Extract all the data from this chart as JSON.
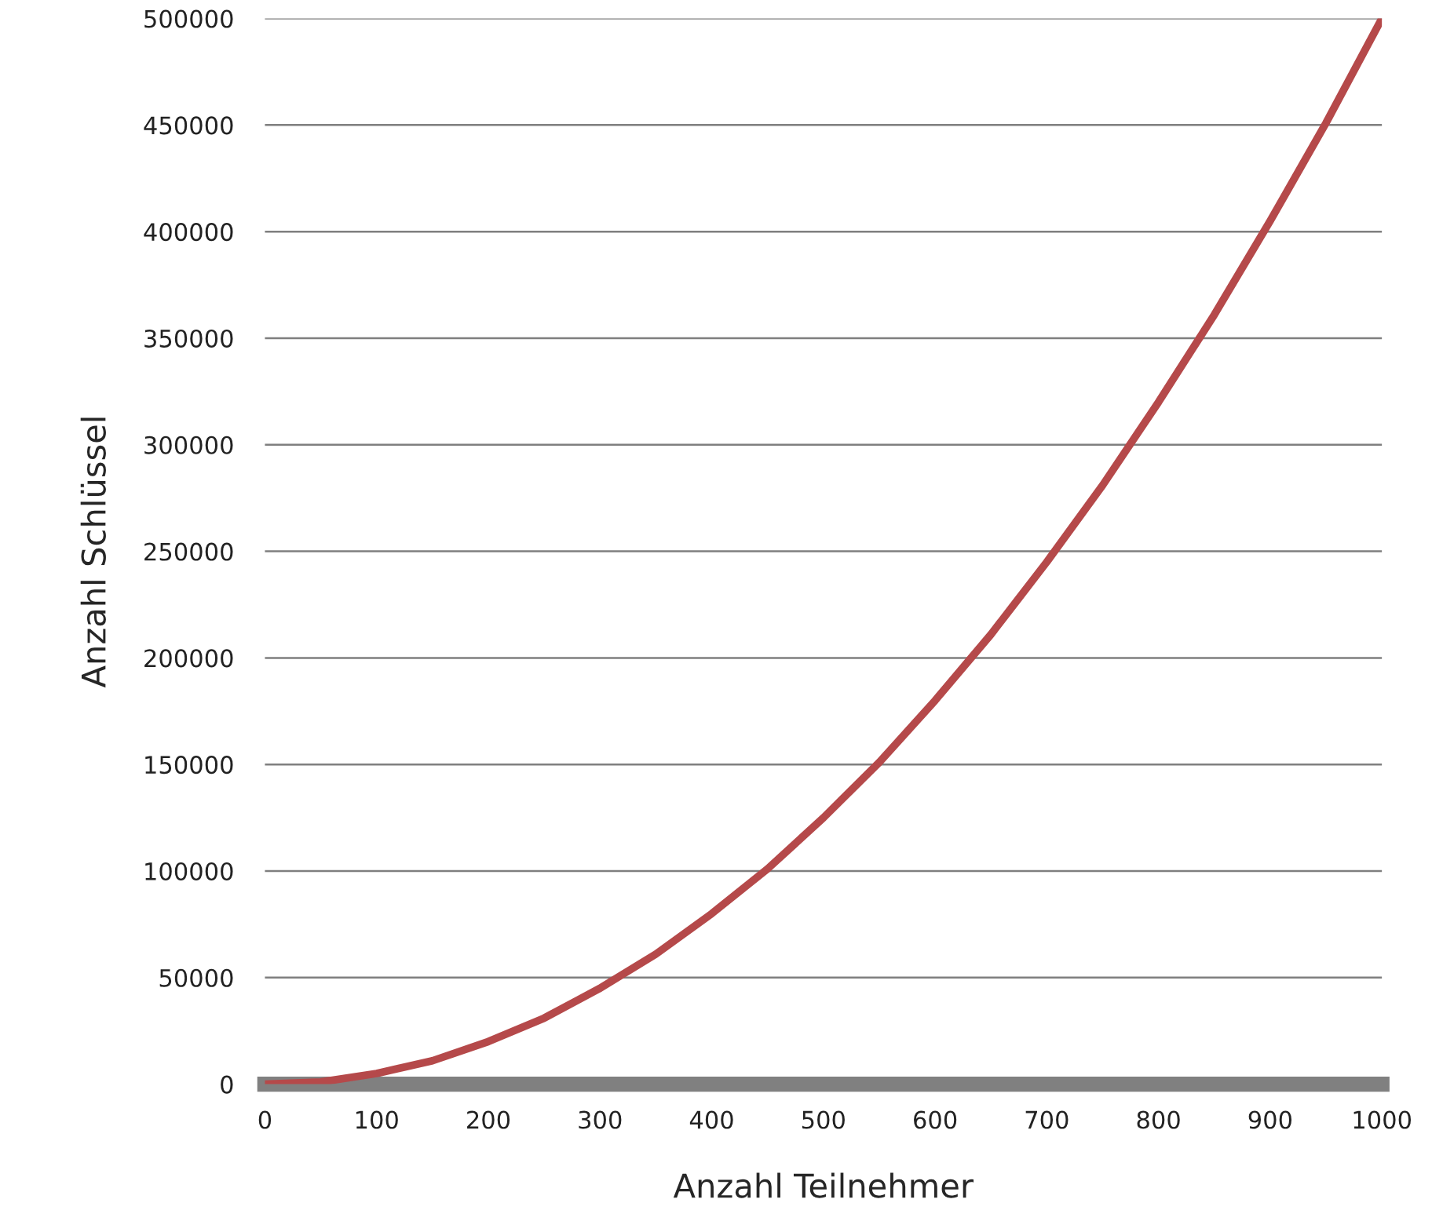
{
  "chart_data": {
    "type": "line",
    "xlabel": "Anzahl Teilnehmer",
    "ylabel": "Anzahl Schlüssel",
    "x": [
      0,
      50,
      100,
      150,
      200,
      250,
      300,
      350,
      400,
      450,
      500,
      550,
      600,
      650,
      700,
      750,
      800,
      850,
      900,
      950,
      1000
    ],
    "series": [
      {
        "color": "#b5494a",
        "values": [
          0,
          1000,
          5000,
          11000,
          20000,
          31000,
          45000,
          61000,
          80000,
          101000,
          125000,
          151000,
          180000,
          211000,
          245000,
          281000,
          320000,
          361000,
          405000,
          451000,
          500000
        ]
      }
    ],
    "xlim": [
      0,
      1000
    ],
    "xticks": [
      0,
      100,
      200,
      300,
      400,
      500,
      600,
      700,
      800,
      900,
      1000
    ],
    "ylim": [
      0,
      500000
    ],
    "yticks": [
      0,
      50000,
      100000,
      150000,
      200000,
      250000,
      300000,
      350000,
      400000,
      450000,
      500000
    ],
    "grid": "y",
    "marker": "none",
    "line_style": "solid"
  }
}
